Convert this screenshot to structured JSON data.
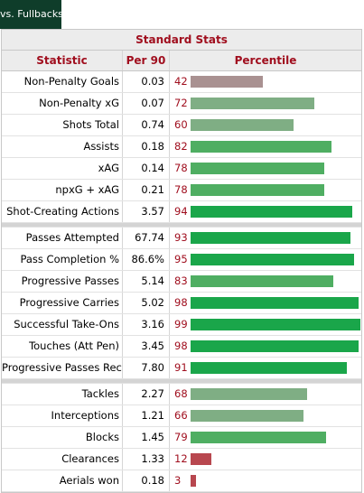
{
  "tab": {
    "label": "vs. Fullbacks"
  },
  "table": {
    "title": "Standard Stats",
    "headers": {
      "statistic": "Statistic",
      "per90": "Per 90",
      "percentile": "Percentile"
    },
    "groups": [
      [
        {
          "stat": "Non-Penalty Goals",
          "per90": "0.03",
          "percentile": 42
        },
        {
          "stat": "Non-Penalty xG",
          "per90": "0.07",
          "percentile": 72
        },
        {
          "stat": "Shots Total",
          "per90": "0.74",
          "percentile": 60
        },
        {
          "stat": "Assists",
          "per90": "0.18",
          "percentile": 82
        },
        {
          "stat": "xAG",
          "per90": "0.14",
          "percentile": 78
        },
        {
          "stat": "npxG + xAG",
          "per90": "0.21",
          "percentile": 78
        },
        {
          "stat": "Shot-Creating Actions",
          "per90": "3.57",
          "percentile": 94
        }
      ],
      [
        {
          "stat": "Passes Attempted",
          "per90": "67.74",
          "percentile": 93
        },
        {
          "stat": "Pass Completion %",
          "per90": "86.6%",
          "percentile": 95
        },
        {
          "stat": "Progressive Passes",
          "per90": "5.14",
          "percentile": 83
        },
        {
          "stat": "Progressive Carries",
          "per90": "5.02",
          "percentile": 98
        },
        {
          "stat": "Successful Take-Ons",
          "per90": "3.16",
          "percentile": 99
        },
        {
          "stat": "Touches (Att Pen)",
          "per90": "3.45",
          "percentile": 98
        },
        {
          "stat": "Progressive Passes Rec",
          "per90": "7.80",
          "percentile": 91
        }
      ],
      [
        {
          "stat": "Tackles",
          "per90": "2.27",
          "percentile": 68
        },
        {
          "stat": "Interceptions",
          "per90": "1.21",
          "percentile": 66
        },
        {
          "stat": "Blocks",
          "per90": "1.45",
          "percentile": 79
        },
        {
          "stat": "Clearances",
          "per90": "1.33",
          "percentile": 12
        },
        {
          "stat": "Aerials won",
          "per90": "0.18",
          "percentile": 3
        }
      ]
    ]
  },
  "colors": {
    "tab_bg": "#0f3d2a",
    "header_text": "#a00e1e",
    "bar_elite": "#1aa64a",
    "bar_good": "#4fae62",
    "bar_above_avg": "#7fae84",
    "bar_avg": "#a99191",
    "bar_poor": "#b8474f"
  }
}
